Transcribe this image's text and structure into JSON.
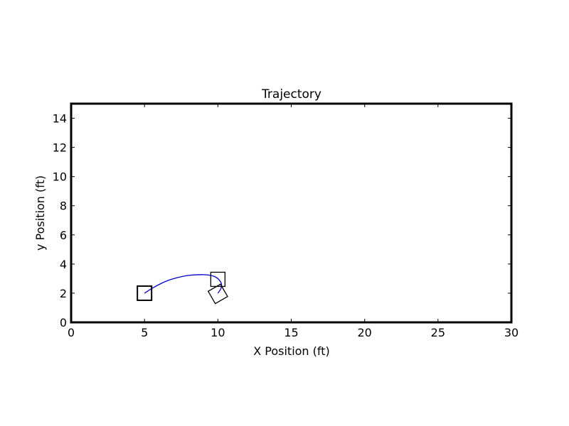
{
  "chart_data": {
    "type": "line",
    "title": "Trajectory",
    "xlabel": "X Position (ft)",
    "ylabel": "y Position (ft)",
    "xlim": [
      0,
      30
    ],
    "ylim": [
      0,
      15
    ],
    "xticks": [
      "0",
      "5",
      "10",
      "15",
      "20",
      "25",
      "30"
    ],
    "yticks": [
      "0",
      "2",
      "4",
      "6",
      "8",
      "10",
      "12",
      "14"
    ],
    "grid": false,
    "series": [
      {
        "color": "#0000cc",
        "x": [
          5.0,
          5.5,
          6.0,
          6.5,
          7.0,
          7.5,
          8.0,
          8.5,
          9.0,
          9.4,
          9.8,
          10.1,
          10.25,
          10.2,
          10.0
        ],
        "y": [
          2.0,
          2.32,
          2.6,
          2.83,
          3.0,
          3.13,
          3.22,
          3.26,
          3.27,
          3.24,
          3.13,
          2.9,
          2.6,
          2.3,
          2.0
        ]
      }
    ],
    "markers": [
      {
        "shape": "square",
        "x": 5.0,
        "y": 2.0,
        "angle_deg": 0,
        "stroke_width": 2
      },
      {
        "shape": "square",
        "x": 10.0,
        "y": 2.95,
        "angle_deg": 0,
        "stroke_width": 1.3
      },
      {
        "shape": "square",
        "x": 10.0,
        "y": 1.95,
        "angle_deg": 30,
        "stroke_width": 1.3
      }
    ]
  }
}
